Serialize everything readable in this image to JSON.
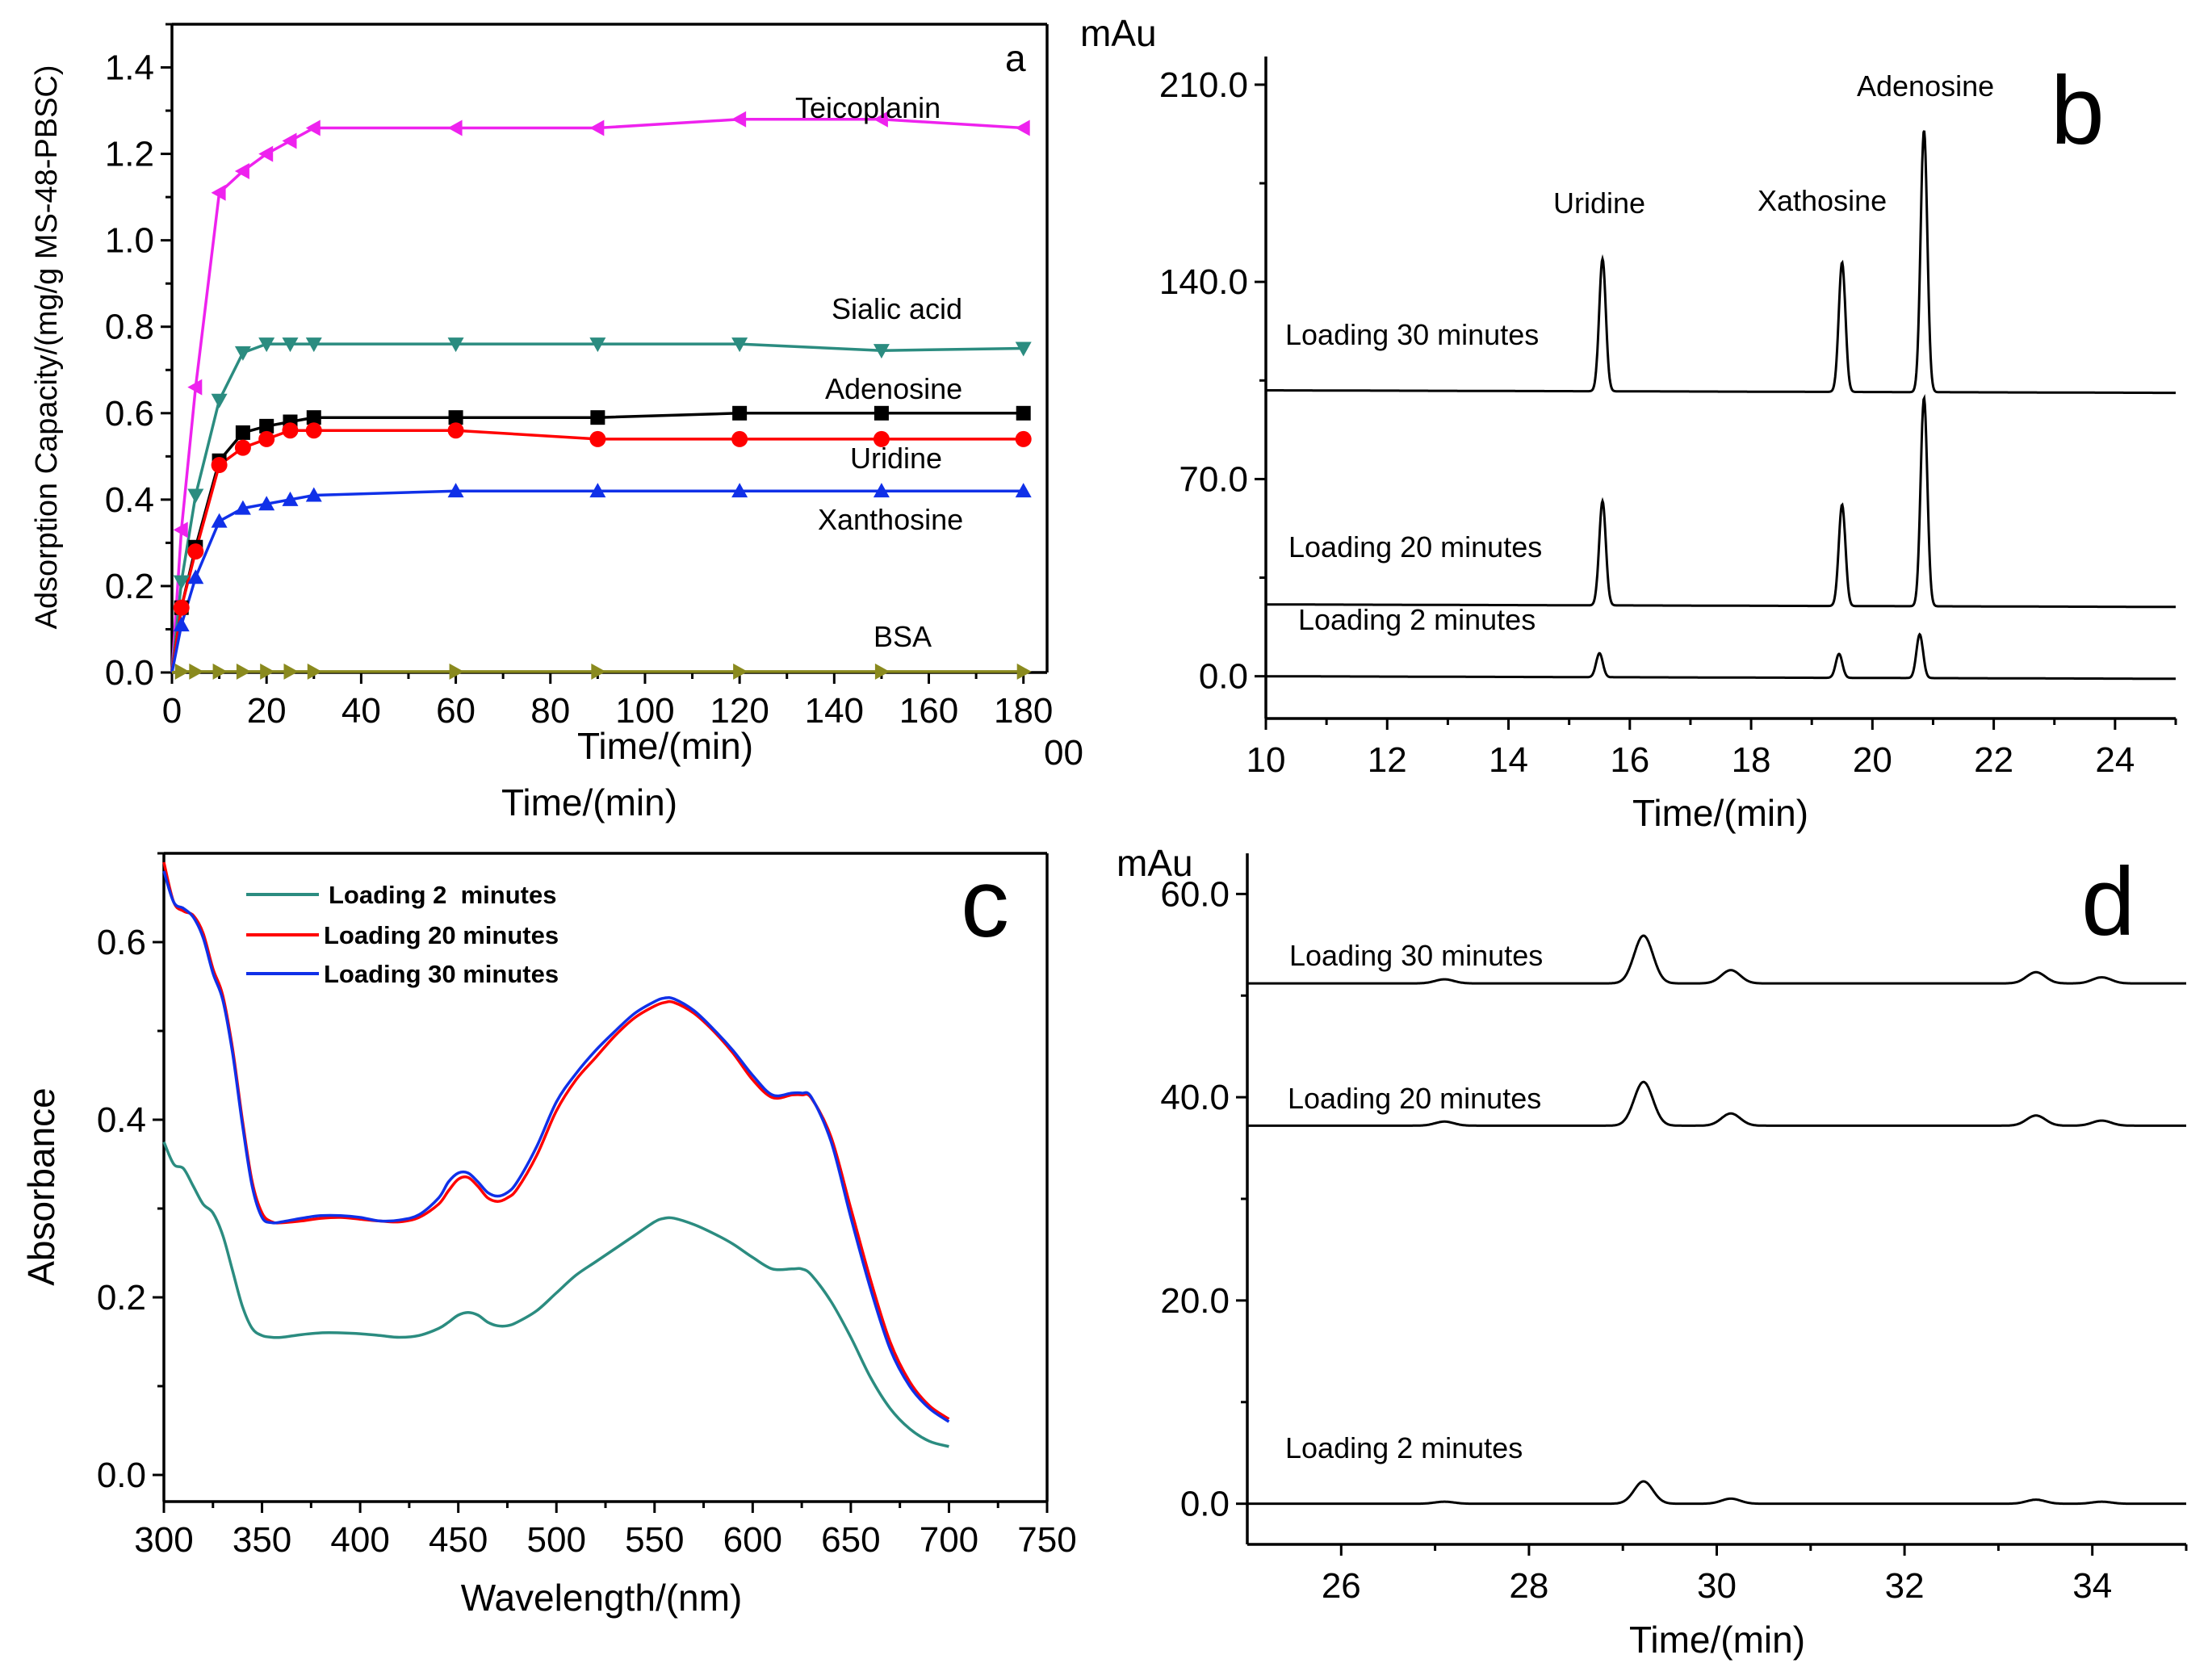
{
  "chart_data": [
    {
      "panel": "a",
      "type": "line",
      "title": "",
      "xlabel": "Time/(min)",
      "ylabel": "Adsorption Capacity/(mg/g MS-48-PBSC)",
      "xlim": [
        0,
        185
      ],
      "ylim": [
        0,
        1.5
      ],
      "x_ticks": [
        0,
        20,
        40,
        60,
        80,
        100,
        120,
        140,
        160,
        180
      ],
      "y_ticks": [
        0.0,
        0.2,
        0.4,
        0.6,
        0.8,
        1.0,
        1.2,
        1.4
      ],
      "x": [
        0,
        2,
        5,
        10,
        15,
        20,
        25,
        30,
        60,
        90,
        120,
        150,
        180
      ],
      "series": [
        {
          "name": "Teicoplanin",
          "color": "#ee22ee",
          "marker": "triangle-left",
          "values": [
            0,
            0.33,
            0.66,
            1.11,
            1.16,
            1.2,
            1.23,
            1.26,
            1.26,
            1.26,
            1.28,
            1.28,
            1.26
          ]
        },
        {
          "name": "Sialic acid",
          "color": "#2b8c80",
          "marker": "triangle-down",
          "values": [
            0,
            0.21,
            0.41,
            0.63,
            0.74,
            0.76,
            0.76,
            0.76,
            0.76,
            0.76,
            0.76,
            0.745,
            0.75
          ]
        },
        {
          "name": "Adenosine",
          "color": "#000000",
          "marker": "square",
          "values": [
            0,
            0.15,
            0.29,
            0.49,
            0.555,
            0.57,
            0.58,
            0.59,
            0.59,
            0.59,
            0.6,
            0.6,
            0.6
          ]
        },
        {
          "name": "Uridine",
          "color": "#ff0000",
          "marker": "circle",
          "values": [
            0,
            0.15,
            0.28,
            0.48,
            0.52,
            0.54,
            0.56,
            0.56,
            0.56,
            0.54,
            0.54,
            0.54,
            0.54
          ]
        },
        {
          "name": "Xanthosine",
          "color": "#1030e8",
          "marker": "triangle-up",
          "values": [
            0,
            0.11,
            0.22,
            0.35,
            0.38,
            0.39,
            0.4,
            0.41,
            0.42,
            0.42,
            0.42,
            0.42,
            0.42
          ]
        },
        {
          "name": "BSA",
          "color": "#8a8a1e",
          "marker": "triangle-right",
          "values": [
            0,
            0.002,
            0.002,
            0.002,
            0.002,
            0.002,
            0.002,
            0.002,
            0.002,
            0.002,
            0.002,
            0.002,
            0.002
          ]
        }
      ],
      "series_labels": [
        "Teicoplanin",
        "Sialic acid",
        "Adenosine",
        "Uridine",
        "Xanthosine",
        "BSA"
      ],
      "annotations": {
        "panel_letter": "a",
        "overlap_xlabel": "Time/(min)",
        "overlap_tick_fragment": "00"
      }
    },
    {
      "panel": "b",
      "type": "line",
      "title": "",
      "xlabel": "Time/(min)",
      "ylabel": "mAu",
      "xlim": [
        10,
        25
      ],
      "ylim": [
        -15,
        220
      ],
      "x_ticks": [
        10,
        12,
        14,
        16,
        18,
        20,
        22,
        24
      ],
      "y_ticks": [
        0.0,
        70.0,
        140.0,
        210.0
      ],
      "y_tick_labels": [
        "0.0",
        "70.0",
        "140.0",
        "210.0"
      ],
      "baseline_slope": -0.06,
      "peak_width": 0.055,
      "series": [
        {
          "name": "Loading 2 minutes",
          "baseline": 0,
          "peaks": [
            {
              "x": 15.5,
              "h": 8.5
            },
            {
              "x": 19.45,
              "h": 8.5
            },
            {
              "x": 20.78,
              "h": 15.5
            }
          ]
        },
        {
          "name": "Loading 20 minutes",
          "baseline": 25.5,
          "peaks": [
            {
              "x": 15.55,
              "h": 37
            },
            {
              "x": 19.5,
              "h": 36
            },
            {
              "x": 20.85,
              "h": 74
            }
          ]
        },
        {
          "name": "Loading 30 minutes",
          "baseline": 101.5,
          "peaks": [
            {
              "x": 15.55,
              "h": 47
            },
            {
              "x": 19.5,
              "h": 46
            },
            {
              "x": 20.85,
              "h": 93
            }
          ]
        }
      ],
      "peak_labels": [
        "Uridine",
        "Xathosine",
        "Adenosine"
      ],
      "annotations": {
        "panel_letter": "b"
      }
    },
    {
      "panel": "c",
      "type": "line",
      "title": "",
      "xlabel": "Wavelength/(nm)",
      "ylabel": "Absorbance",
      "xlim": [
        300,
        750
      ],
      "ylim": [
        -0.03,
        0.7
      ],
      "x_ticks": [
        300,
        350,
        400,
        450,
        500,
        550,
        600,
        650,
        700,
        750
      ],
      "y_ticks": [
        0.0,
        0.2,
        0.4,
        0.6
      ],
      "y_tick_labels": [
        "0.0",
        "0.2",
        "0.4",
        "0.6"
      ],
      "x": [
        300,
        305,
        310,
        315,
        320,
        325,
        330,
        335,
        340,
        345,
        350,
        355,
        360,
        370,
        380,
        390,
        400,
        410,
        420,
        430,
        440,
        445,
        450,
        455,
        460,
        465,
        470,
        475,
        480,
        490,
        500,
        510,
        520,
        530,
        540,
        550,
        555,
        560,
        570,
        580,
        590,
        600,
        610,
        620,
        625,
        630,
        640,
        650,
        660,
        670,
        680,
        690,
        700
      ],
      "series": [
        {
          "name": "Loading 2  minutes",
          "color": "#2b8c80",
          "values": [
            0.375,
            0.35,
            0.345,
            0.325,
            0.305,
            0.295,
            0.27,
            0.23,
            0.19,
            0.165,
            0.157,
            0.155,
            0.155,
            0.158,
            0.16,
            0.16,
            0.159,
            0.157,
            0.155,
            0.157,
            0.165,
            0.172,
            0.18,
            0.183,
            0.18,
            0.172,
            0.168,
            0.168,
            0.172,
            0.185,
            0.205,
            0.225,
            0.24,
            0.255,
            0.27,
            0.285,
            0.289,
            0.289,
            0.282,
            0.272,
            0.26,
            0.245,
            0.232,
            0.232,
            0.232,
            0.225,
            0.195,
            0.155,
            0.11,
            0.075,
            0.052,
            0.038,
            0.032
          ]
        },
        {
          "name": "Loading 20 minutes",
          "color": "#ff0000",
          "values": [
            0.69,
            0.645,
            0.635,
            0.63,
            0.61,
            0.57,
            0.54,
            0.48,
            0.4,
            0.33,
            0.295,
            0.285,
            0.284,
            0.286,
            0.289,
            0.29,
            0.288,
            0.286,
            0.285,
            0.29,
            0.305,
            0.32,
            0.333,
            0.335,
            0.325,
            0.312,
            0.308,
            0.312,
            0.322,
            0.36,
            0.41,
            0.445,
            0.47,
            0.495,
            0.515,
            0.528,
            0.532,
            0.532,
            0.52,
            0.5,
            0.475,
            0.445,
            0.425,
            0.428,
            0.428,
            0.424,
            0.38,
            0.3,
            0.22,
            0.15,
            0.105,
            0.078,
            0.063
          ]
        },
        {
          "name": "Loading 30 minutes",
          "color": "#1030e8",
          "values": [
            0.68,
            0.645,
            0.638,
            0.628,
            0.605,
            0.565,
            0.535,
            0.475,
            0.395,
            0.325,
            0.29,
            0.284,
            0.285,
            0.289,
            0.292,
            0.292,
            0.29,
            0.286,
            0.287,
            0.293,
            0.312,
            0.33,
            0.34,
            0.34,
            0.33,
            0.318,
            0.314,
            0.318,
            0.33,
            0.37,
            0.42,
            0.452,
            0.478,
            0.5,
            0.52,
            0.533,
            0.537,
            0.536,
            0.523,
            0.502,
            0.478,
            0.45,
            0.428,
            0.43,
            0.43,
            0.425,
            0.375,
            0.29,
            0.21,
            0.142,
            0.1,
            0.075,
            0.06
          ]
        }
      ],
      "legend": [
        "Loading 2  minutes",
        "Loading 20 minutes",
        "Loading 30 minutes"
      ],
      "legend_position": "top-left",
      "annotations": {
        "panel_letter": "c"
      }
    },
    {
      "panel": "d",
      "type": "line",
      "title": "",
      "xlabel": "Time/(min)",
      "ylabel": "mAu",
      "xlim": [
        25,
        35
      ],
      "ylim": [
        -4,
        64
      ],
      "x_ticks": [
        26,
        28,
        30,
        32,
        34
      ],
      "y_ticks": [
        0.0,
        20.0,
        40.0,
        60.0
      ],
      "y_tick_labels": [
        "0.0",
        "20.0",
        "40.0",
        "60.0"
      ],
      "baseline_slope": 0,
      "peak_width": 0.1,
      "series": [
        {
          "name": "Loading 2 minutes",
          "baseline": 0,
          "peaks": [
            {
              "x": 27.1,
              "h": 0.2
            },
            {
              "x": 29.22,
              "h": 2.2
            },
            {
              "x": 30.15,
              "h": 0.5
            },
            {
              "x": 33.4,
              "h": 0.4
            },
            {
              "x": 34.1,
              "h": 0.2
            }
          ]
        },
        {
          "name": "Loading 20 minutes",
          "baseline": 37.2,
          "peaks": [
            {
              "x": 27.1,
              "h": 0.4
            },
            {
              "x": 29.22,
              "h": 4.3
            },
            {
              "x": 30.15,
              "h": 1.2
            },
            {
              "x": 33.4,
              "h": 1.0
            },
            {
              "x": 34.1,
              "h": 0.5
            }
          ]
        },
        {
          "name": "Loading 30 minutes",
          "baseline": 51.2,
          "peaks": [
            {
              "x": 27.1,
              "h": 0.4
            },
            {
              "x": 29.22,
              "h": 4.7
            },
            {
              "x": 30.15,
              "h": 1.3
            },
            {
              "x": 33.4,
              "h": 1.1
            },
            {
              "x": 34.1,
              "h": 0.6
            }
          ]
        }
      ],
      "annotations": {
        "panel_letter": "d"
      }
    }
  ]
}
